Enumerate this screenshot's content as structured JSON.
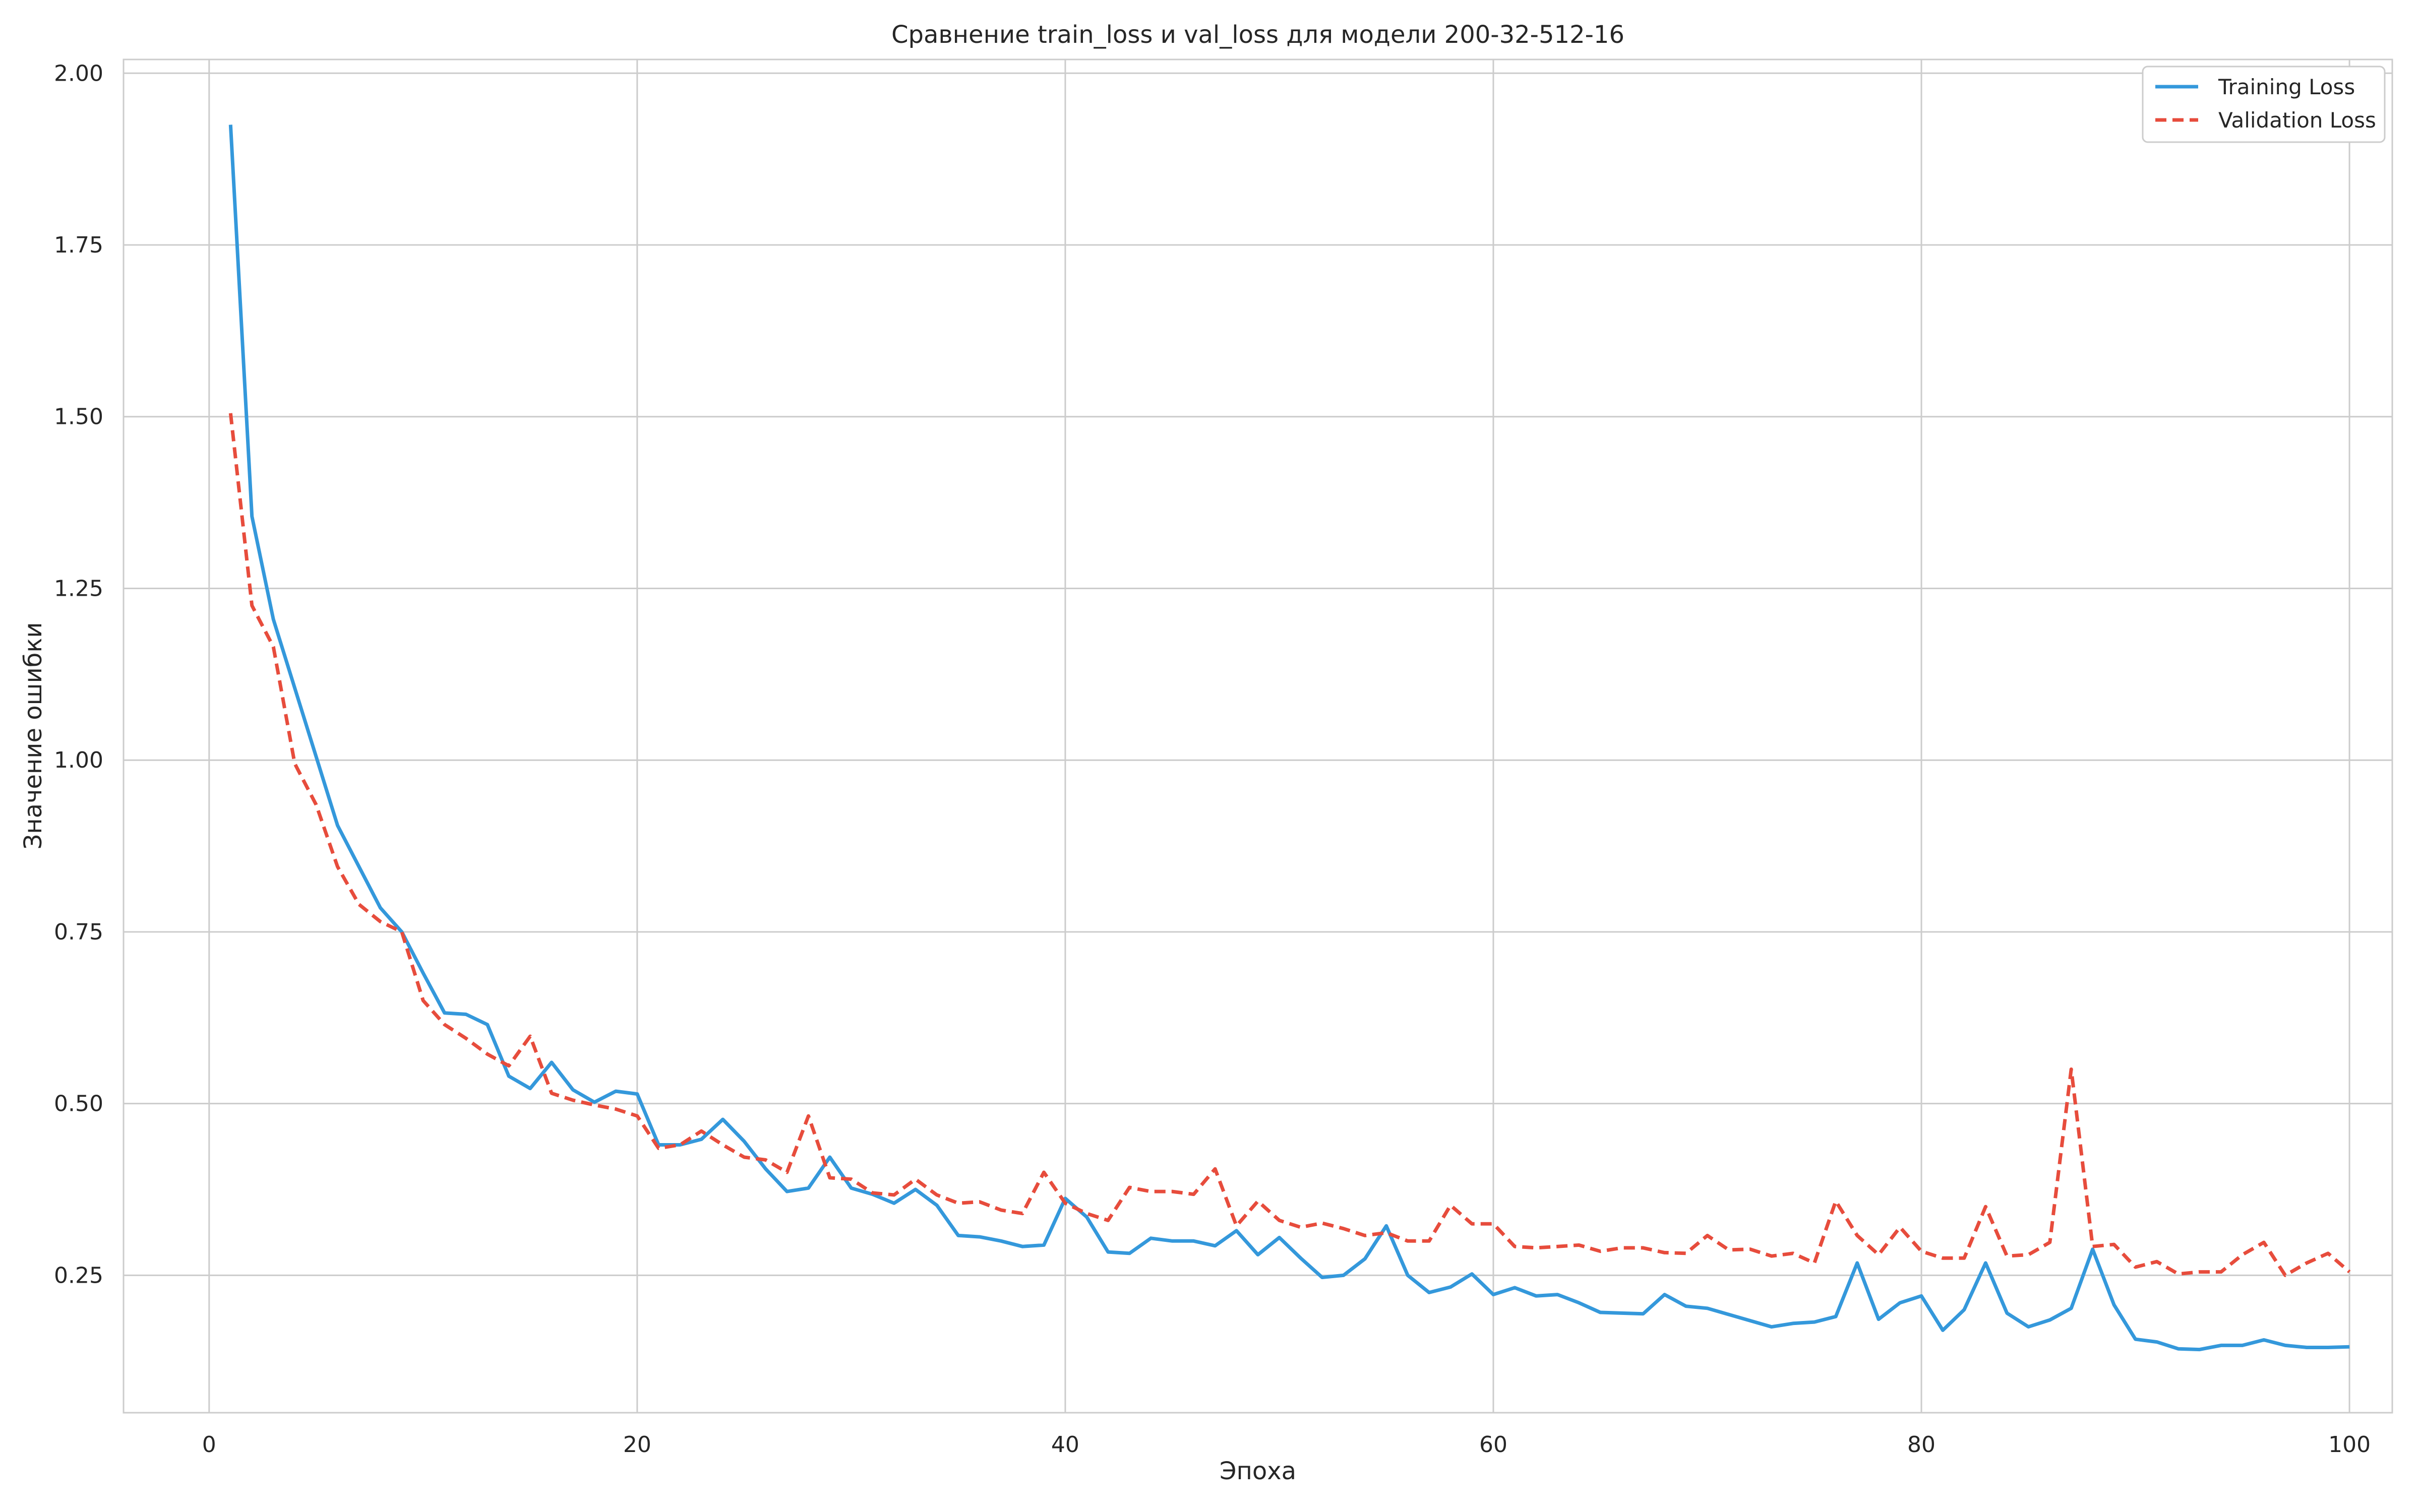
{
  "chart_data": {
    "type": "line",
    "title": "Сравнение train_loss и val_loss для модели 200-32-512-16",
    "xlabel": "Эпоха",
    "ylabel": "Значение ошибки",
    "xlim": [
      -4,
      102
    ],
    "ylim": [
      0.05,
      2.02
    ],
    "xticks": [
      0,
      20,
      40,
      60,
      80,
      100
    ],
    "yticks": [
      0.25,
      0.5,
      0.75,
      1.0,
      1.25,
      1.5,
      1.75,
      2.0
    ],
    "ytick_labels": [
      "0.25",
      "0.50",
      "0.75",
      "1.00",
      "1.25",
      "1.50",
      "1.75",
      "2.00"
    ],
    "grid": true,
    "legend_position": "top-right",
    "x": [
      1,
      2,
      3,
      4,
      5,
      6,
      7,
      8,
      9,
      10,
      11,
      12,
      13,
      14,
      15,
      16,
      17,
      18,
      19,
      20,
      21,
      22,
      23,
      24,
      25,
      26,
      27,
      28,
      29,
      30,
      31,
      32,
      33,
      34,
      35,
      36,
      37,
      38,
      39,
      40,
      41,
      42,
      43,
      44,
      45,
      46,
      47,
      48,
      49,
      50,
      51,
      52,
      53,
      54,
      55,
      56,
      57,
      58,
      59,
      60,
      61,
      62,
      63,
      64,
      65,
      66,
      67,
      68,
      69,
      70,
      71,
      72,
      73,
      74,
      75,
      76,
      77,
      78,
      79,
      80,
      81,
      82,
      83,
      84,
      85,
      86,
      87,
      88,
      89,
      90,
      91,
      92,
      93,
      94,
      95,
      96,
      97,
      98,
      99,
      100
    ],
    "series": [
      {
        "name": "Training Loss",
        "color": "#3498db",
        "style": "solid",
        "values": [
          1.925,
          1.355,
          1.205,
          1.105,
          1.005,
          0.905,
          0.845,
          0.785,
          0.75,
          0.69,
          0.632,
          0.63,
          0.615,
          0.54,
          0.522,
          0.56,
          0.52,
          0.502,
          0.518,
          0.514,
          0.44,
          0.44,
          0.448,
          0.477,
          0.445,
          0.405,
          0.372,
          0.377,
          0.422,
          0.377,
          0.368,
          0.355,
          0.375,
          0.352,
          0.308,
          0.306,
          0.3,
          0.292,
          0.294,
          0.362,
          0.335,
          0.284,
          0.282,
          0.304,
          0.3,
          0.3,
          0.293,
          0.315,
          0.28,
          0.305,
          0.275,
          0.247,
          0.25,
          0.274,
          0.322,
          0.25,
          0.225,
          0.233,
          0.252,
          0.222,
          0.232,
          0.22,
          0.222,
          0.21,
          0.196,
          0.195,
          0.194,
          0.222,
          0.205,
          0.202,
          0.193,
          0.184,
          0.175,
          0.18,
          0.182,
          0.19,
          0.268,
          0.186,
          0.21,
          0.22,
          0.17,
          0.2,
          0.268,
          0.195,
          0.175,
          0.185,
          0.202,
          0.288,
          0.207,
          0.157,
          0.153,
          0.143,
          0.142,
          0.148,
          0.148,
          0.156,
          0.148,
          0.145,
          0.145,
          0.146
        ]
      },
      {
        "name": "Validation Loss",
        "color": "#e74c3c",
        "style": "dashed",
        "values": [
          1.505,
          1.225,
          1.165,
          0.995,
          0.935,
          0.845,
          0.79,
          0.765,
          0.75,
          0.65,
          0.615,
          0.595,
          0.572,
          0.555,
          0.598,
          0.515,
          0.505,
          0.498,
          0.492,
          0.482,
          0.435,
          0.44,
          0.46,
          0.44,
          0.422,
          0.418,
          0.4,
          0.482,
          0.392,
          0.39,
          0.37,
          0.367,
          0.39,
          0.367,
          0.355,
          0.357,
          0.345,
          0.34,
          0.4,
          0.355,
          0.34,
          0.33,
          0.378,
          0.372,
          0.372,
          0.368,
          0.405,
          0.322,
          0.358,
          0.33,
          0.32,
          0.326,
          0.318,
          0.308,
          0.312,
          0.3,
          0.3,
          0.352,
          0.325,
          0.325,
          0.292,
          0.29,
          0.292,
          0.294,
          0.285,
          0.29,
          0.29,
          0.283,
          0.282,
          0.308,
          0.287,
          0.288,
          0.278,
          0.282,
          0.268,
          0.358,
          0.308,
          0.28,
          0.32,
          0.285,
          0.275,
          0.275,
          0.35,
          0.278,
          0.28,
          0.298,
          0.55,
          0.292,
          0.295,
          0.262,
          0.27,
          0.252,
          0.255,
          0.255,
          0.28,
          0.298,
          0.25,
          0.268,
          0.282,
          0.255
        ]
      }
    ]
  }
}
